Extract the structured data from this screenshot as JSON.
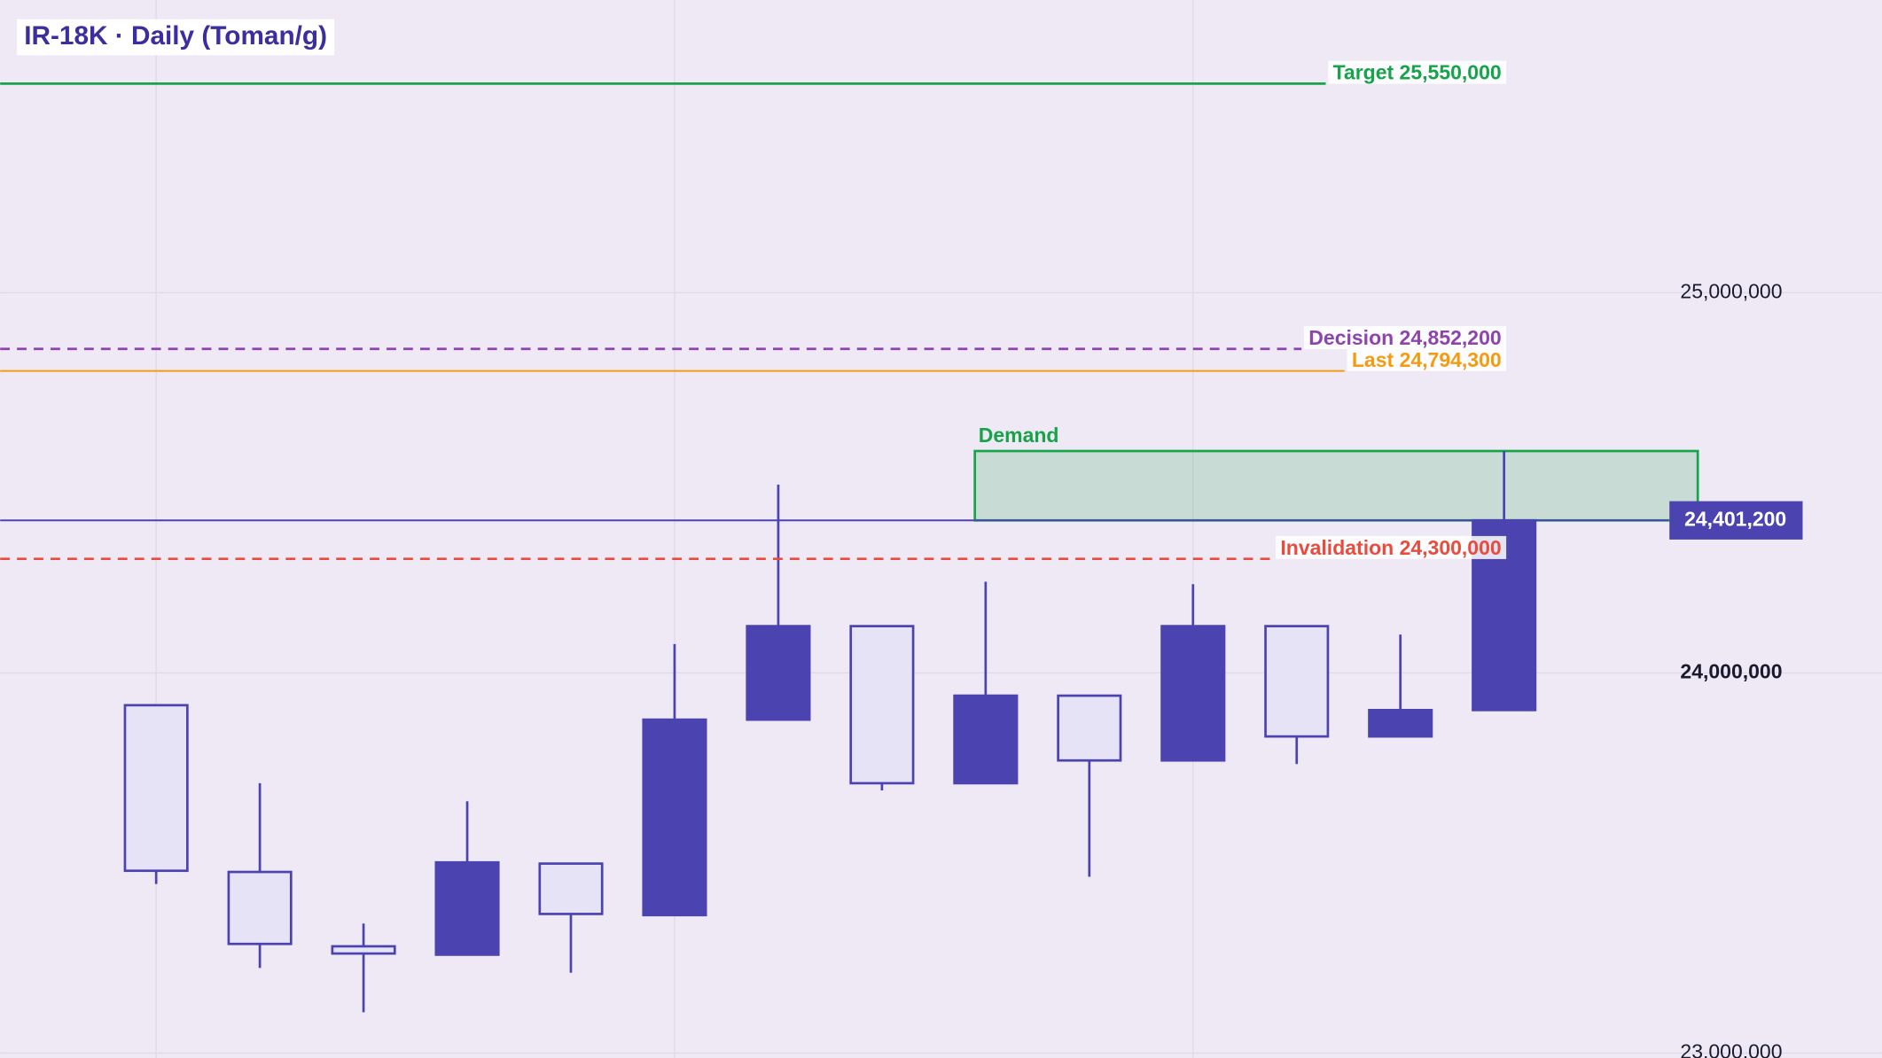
{
  "chart_data": {
    "type": "candlestick",
    "title": "IR-18K · Daily (Toman/g)",
    "series": [
      {
        "name": null,
        "up_color": "#4b44b0",
        "down_color": "#e6e3f7",
        "edge_color": "#4b44b0",
        "open": [
          23915000,
          23476400,
          23280800,
          23258700,
          23498400,
          23362800,
          23877000,
          24123000,
          23709800,
          23940100,
          23769700,
          24123000,
          23832800,
          23902200
        ],
        "high": [
          23915000,
          23709800,
          23340700,
          23662500,
          23498400,
          24075700,
          24495300,
          24123000,
          24239800,
          23940100,
          24233400,
          24123000,
          24100900,
          24583600
        ],
        "low": [
          23444800,
          23224000,
          23107300,
          23258700,
          23211400,
          23362800,
          23877000,
          23690900,
          23709800,
          23463700,
          23769700,
          23760300,
          23832800,
          23902200
        ],
        "close": [
          23479500,
          23287100,
          23261800,
          23501600,
          23365900,
          23877000,
          24123000,
          23709800,
          23940100,
          23769700,
          24123000,
          23832800,
          23902200,
          24401200
        ]
      }
    ],
    "ylim": [
      22987000,
      25770000
    ],
    "yticks": [
      {
        "value": 23000000,
        "label": "23,000,000"
      },
      {
        "value": 24000000,
        "label": "24,000,000"
      },
      {
        "value": 25000000,
        "label": "25,000,000"
      }
    ],
    "grid": true,
    "levels": [
      {
        "label": "Target 25,550,000",
        "value": 25550000,
        "color": "#16a34a",
        "dashed": false
      },
      {
        "label": "Decision 24,852,200",
        "value": 24852200,
        "color": "#8e44ad",
        "dashed": true
      },
      {
        "label": "Last 24,794,300",
        "value": 24794300,
        "color": "#f39c12",
        "dashed": false
      },
      {
        "label": "Invalidation 24,300,000",
        "value": 24300000,
        "color": "#e74c3c",
        "dashed": true
      }
    ],
    "zone": {
      "label": "Demand",
      "high": 24583600,
      "low": 24401200,
      "color": "#16a34a"
    },
    "current_price": {
      "value": 24401200,
      "value_label": "24,401,200",
      "color": "#4b44b0"
    }
  }
}
